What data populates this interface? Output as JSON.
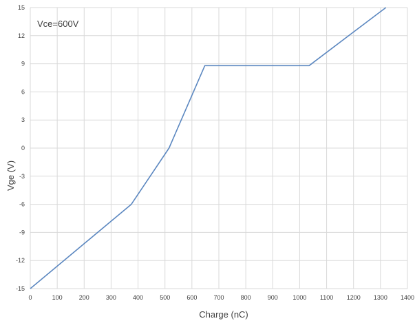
{
  "chart_data": {
    "type": "line",
    "title": "",
    "xlabel": "Charge (nC)",
    "ylabel": "Vge (V)",
    "xlim": [
      0,
      1400
    ],
    "ylim": [
      -15,
      15
    ],
    "x_ticks": [
      0,
      100,
      200,
      300,
      400,
      500,
      600,
      700,
      800,
      900,
      1000,
      1100,
      1200,
      1300,
      1400
    ],
    "y_ticks": [
      15,
      12,
      9,
      6,
      3,
      0,
      -3,
      -6,
      -9,
      -12,
      -15
    ],
    "grid": true,
    "legend": "none",
    "annotation": "Vce=600V",
    "series": [
      {
        "color": "#5b87c0",
        "points": [
          {
            "x": 0,
            "y": -15
          },
          {
            "x": 375,
            "y": -6
          },
          {
            "x": 515,
            "y": 0
          },
          {
            "x": 648,
            "y": 8.8
          },
          {
            "x": 1035,
            "y": 8.8
          },
          {
            "x": 1320,
            "y": 15
          }
        ]
      }
    ]
  }
}
